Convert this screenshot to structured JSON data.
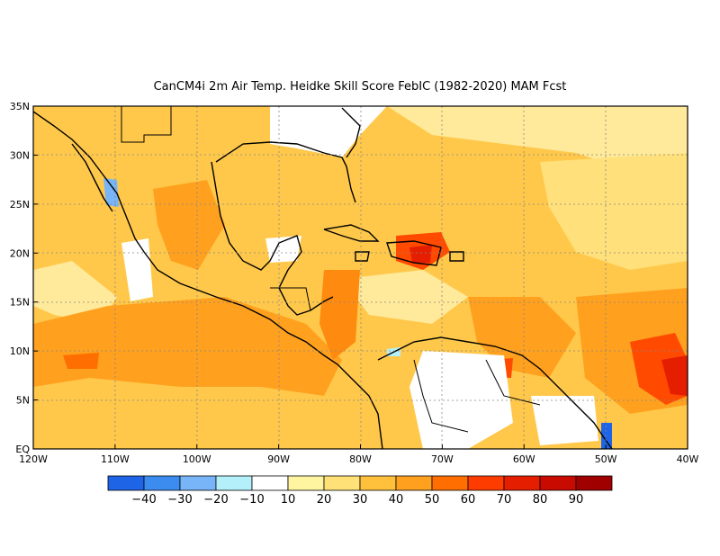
{
  "title": "CanCM4i  2m Air Temp. Heidke Skill Score FebIC (1982-2020) MAM Fcst",
  "map": {
    "lon_range": [
      -120,
      -40
    ],
    "lat_range": [
      0,
      35
    ],
    "lat_ticks": [
      "35N",
      "30N",
      "25N",
      "20N",
      "15N",
      "10N",
      "5N",
      "EQ"
    ],
    "lon_ticks": [
      "120W",
      "110W",
      "100W",
      "90W",
      "80W",
      "70W",
      "60W",
      "50W",
      "40W"
    ]
  },
  "colorbar": {
    "colors": [
      "#1e64e6",
      "#3c8cf0",
      "#78b4f8",
      "#b4f0fa",
      "#ffffff",
      "#fff5a0",
      "#ffe178",
      "#ffc03c",
      "#ffa01e",
      "#ff6e00",
      "#ff3c00",
      "#e61e00",
      "#c80a00",
      "#a00000"
    ],
    "labels": [
      "-40",
      "-30",
      "-20",
      "-10",
      "10",
      "20",
      "30",
      "40",
      "50",
      "60",
      "70",
      "80",
      "90"
    ]
  },
  "chart_data": {
    "type": "heatmap",
    "title": "CanCM4i  2m Air Temp. Heidke Skill Score FebIC (1982-2020) MAM Fcst",
    "x_range": [
      -120,
      -40
    ],
    "y_range": [
      0,
      35
    ],
    "color_levels": [
      -40,
      -30,
      -20,
      -10,
      10,
      20,
      30,
      40,
      50,
      60,
      70,
      80,
      90
    ]
  }
}
